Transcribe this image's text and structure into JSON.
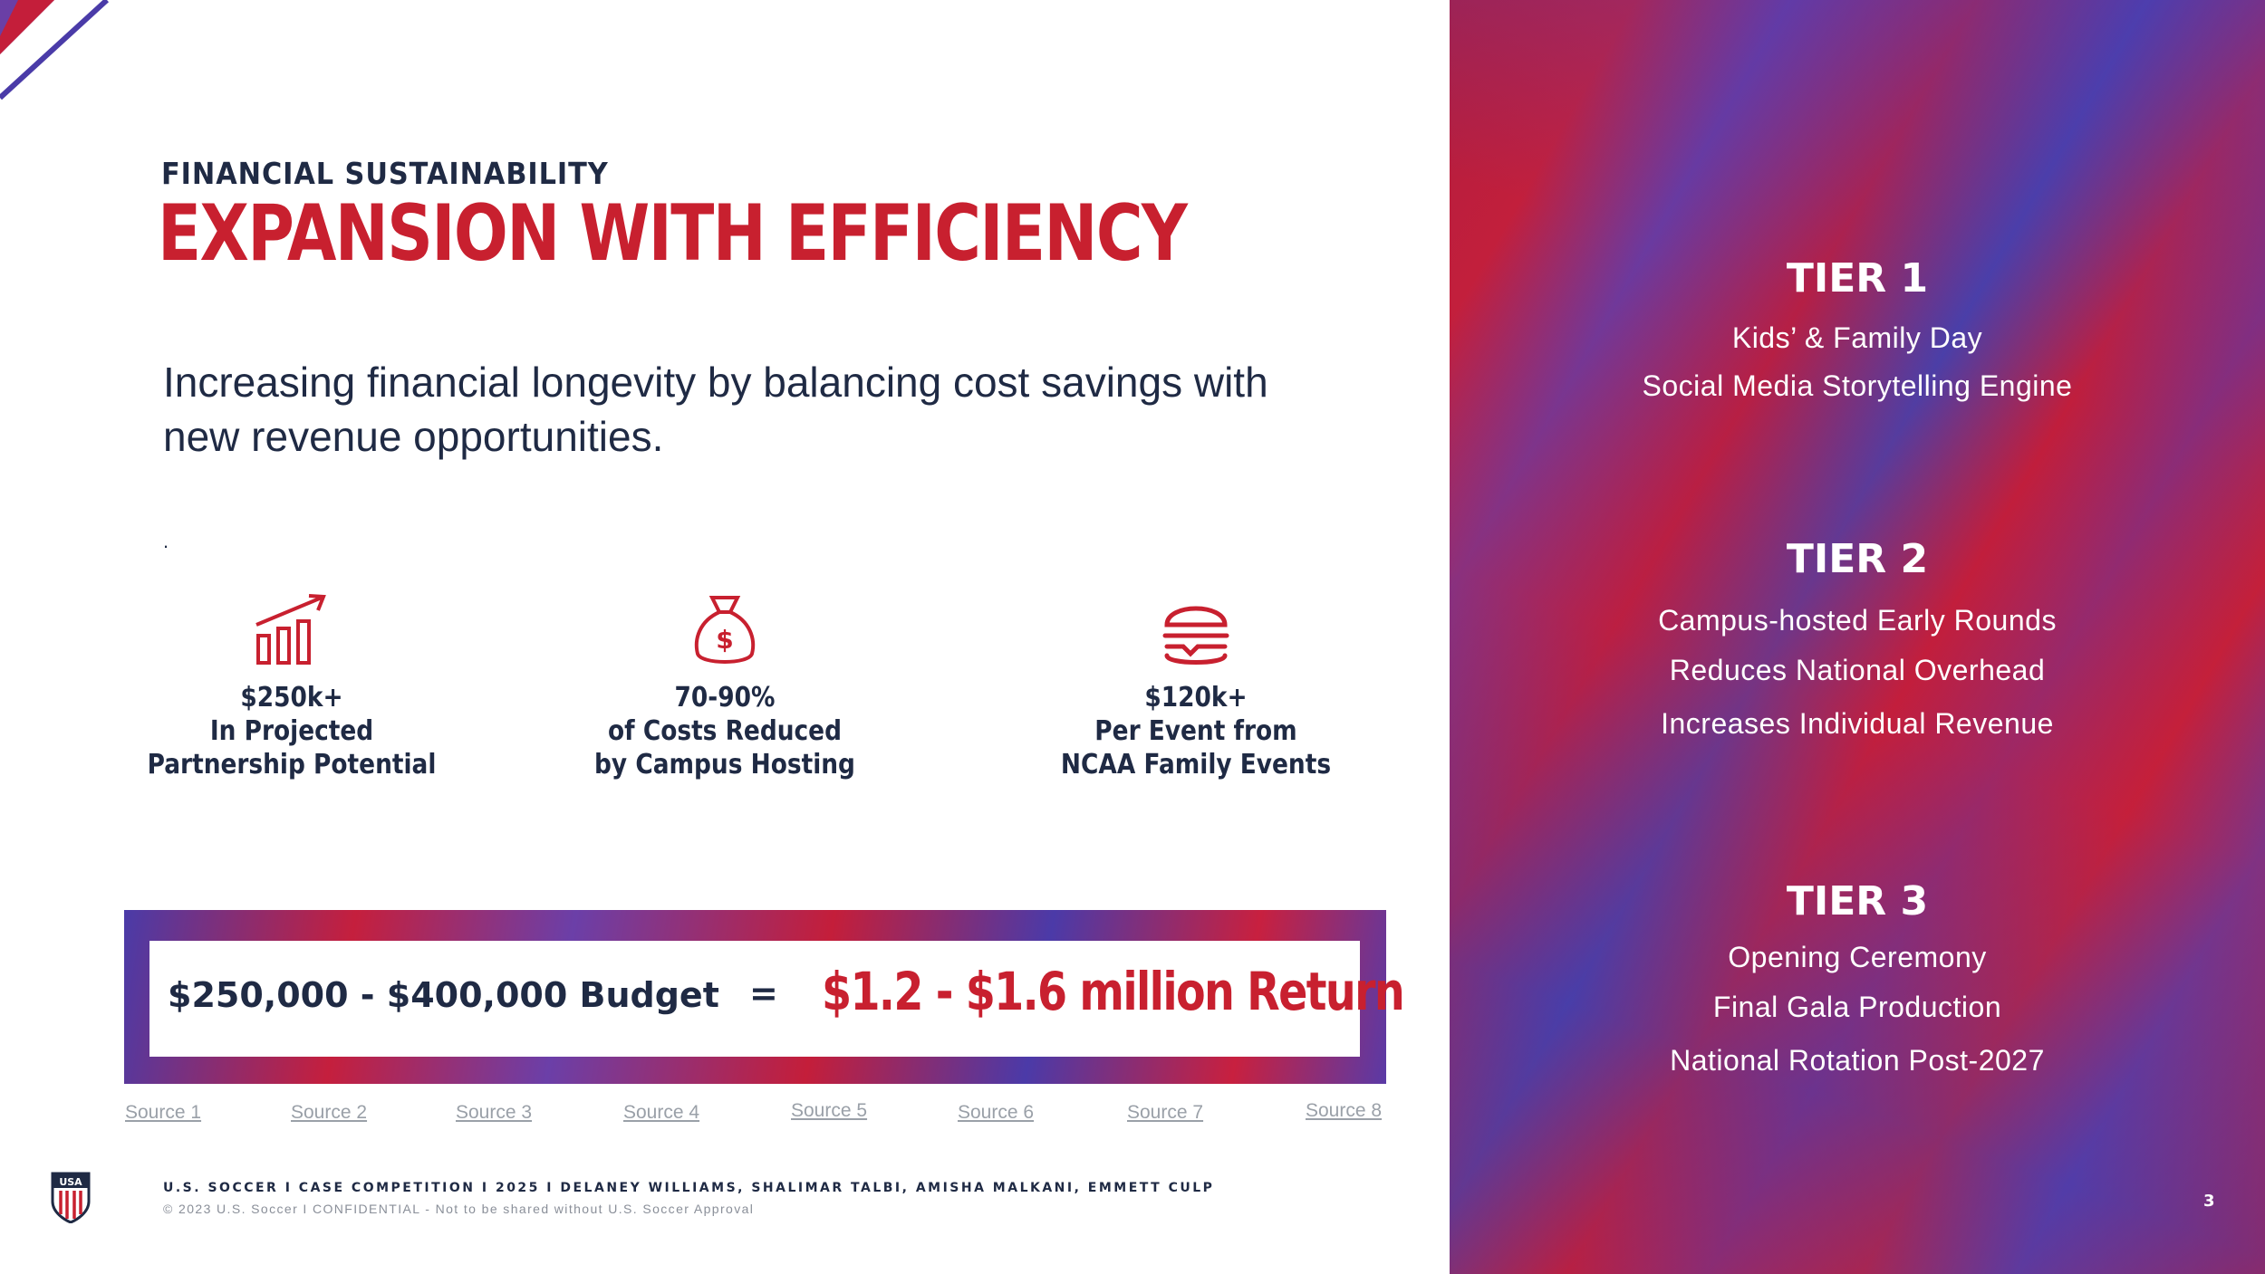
{
  "header": {
    "eyebrow": "FINANCIAL SUSTAINABILITY",
    "title": "EXPANSION WITH EFFICIENCY"
  },
  "subtitle": "Increasing financial longevity by balancing cost savings with new revenue opportunities.",
  "dot": ".",
  "stats": [
    {
      "icon": "growth-chart-icon",
      "lines": [
        "$250k+",
        "In Projected",
        "Partnership Potential"
      ]
    },
    {
      "icon": "money-bag-icon",
      "lines": [
        "70-90%",
        "of Costs Reduced",
        "by Campus Hosting"
      ]
    },
    {
      "icon": "burger-icon",
      "lines": [
        "$120k+",
        "Per Event from",
        "NCAA Family Events"
      ]
    }
  ],
  "equation": {
    "budget": "$250,000 - $400,000 Budget",
    "equals": "=",
    "return": "$1.2 - $1.6 million Return"
  },
  "sources": [
    "Source 1",
    "Source 2",
    "Source 3",
    "Source 4",
    "Source 5",
    "Source 6",
    "Source 7",
    "Source 8"
  ],
  "footer": {
    "line1": "U.S. SOCCER  I  CASE COMPETITION  I   2025   I   DELANEY WILLIAMS, SHALIMAR TALBI, AMISHA MALKANI, EMMETT CULP",
    "line2": "© 2023 U.S. Soccer I CONFIDENTIAL - Not to be shared without U.S. Soccer Approval",
    "logo_text": "USA"
  },
  "tiers": [
    {
      "title": "TIER 1",
      "items": [
        "Kids’ & Family Day",
        "Social Media Storytelling Engine"
      ]
    },
    {
      "title": "TIER 2",
      "items": [
        "Campus-hosted Early Rounds",
        "Reduces National Overhead",
        "Increases Individual Revenue"
      ]
    },
    {
      "title": "TIER 3",
      "items": [
        "Opening Ceremony",
        "Final Gala Production",
        "National Rotation Post-2027"
      ]
    }
  ],
  "page_number": "3",
  "colors": {
    "red": "#c8202f",
    "navy": "#1f2a44",
    "purple": "#4a3ba8"
  }
}
